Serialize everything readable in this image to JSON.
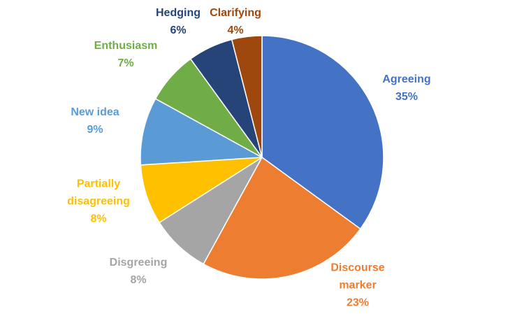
{
  "chart_data": {
    "type": "pie",
    "categories": [
      "Agreeing",
      "Discourse marker",
      "Disgreeing",
      "Partially disagreeing",
      "New idea",
      "Enthusiasm",
      "Hedging",
      "Clarifying"
    ],
    "values": [
      35,
      23,
      8,
      8,
      9,
      7,
      6,
      4
    ],
    "value_labels": [
      "35%",
      "23%",
      "8%",
      "8%",
      "9%",
      "7%",
      "6%",
      "4%"
    ],
    "colors": [
      "#4472c4",
      "#ed7d31",
      "#a5a5a5",
      "#ffc000",
      "#5b9bd5",
      "#70ad47",
      "#264478",
      "#9e480e"
    ]
  }
}
